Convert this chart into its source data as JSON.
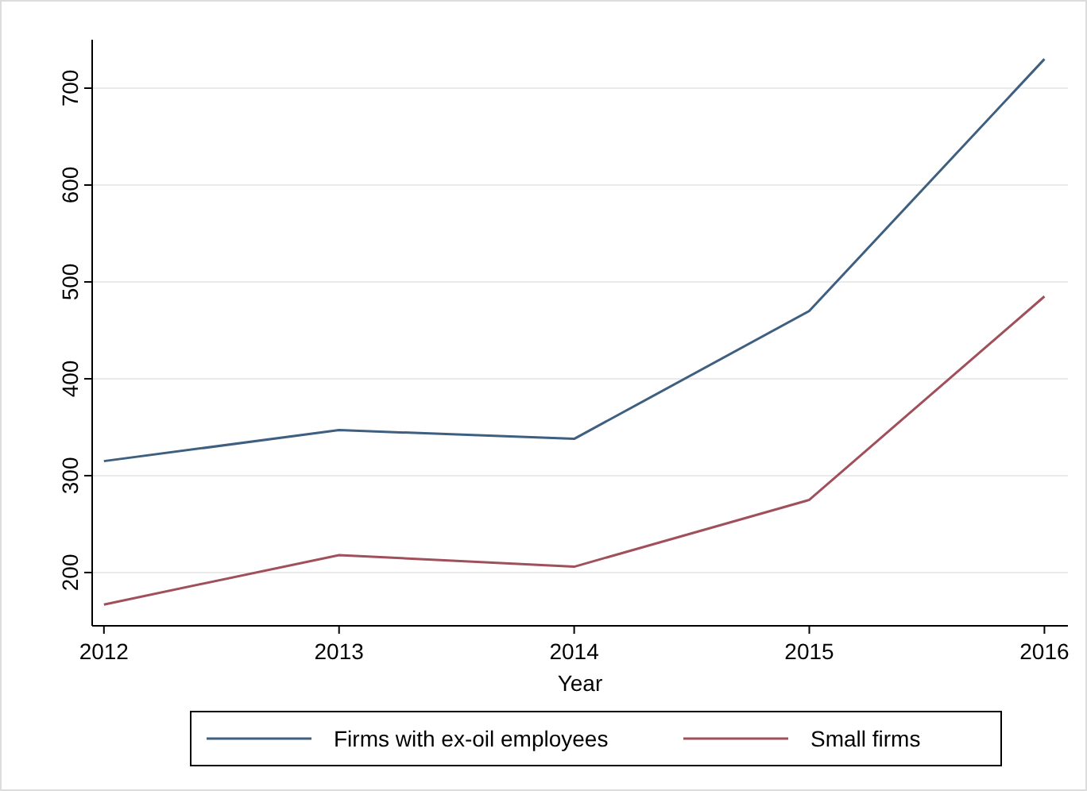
{
  "chart_data": {
    "type": "line",
    "xlabel": "Year",
    "x": [
      2012,
      2013,
      2014,
      2015,
      2016
    ],
    "xlim": [
      2011.95,
      2016.1
    ],
    "xticks": [
      2012,
      2013,
      2014,
      2015,
      2016
    ],
    "ylim": [
      145,
      750
    ],
    "yticks": [
      200,
      300,
      400,
      500,
      600,
      700
    ],
    "grid": "y",
    "legend": "bottom",
    "line_style": "solid",
    "series": [
      {
        "name": "Firms with ex-oil employees",
        "color": "#3e5f80",
        "values": [
          315,
          347,
          338,
          470,
          730
        ]
      },
      {
        "name": "Small firms",
        "color": "#a0505a",
        "values": [
          167,
          218,
          206,
          275,
          485
        ]
      }
    ]
  }
}
